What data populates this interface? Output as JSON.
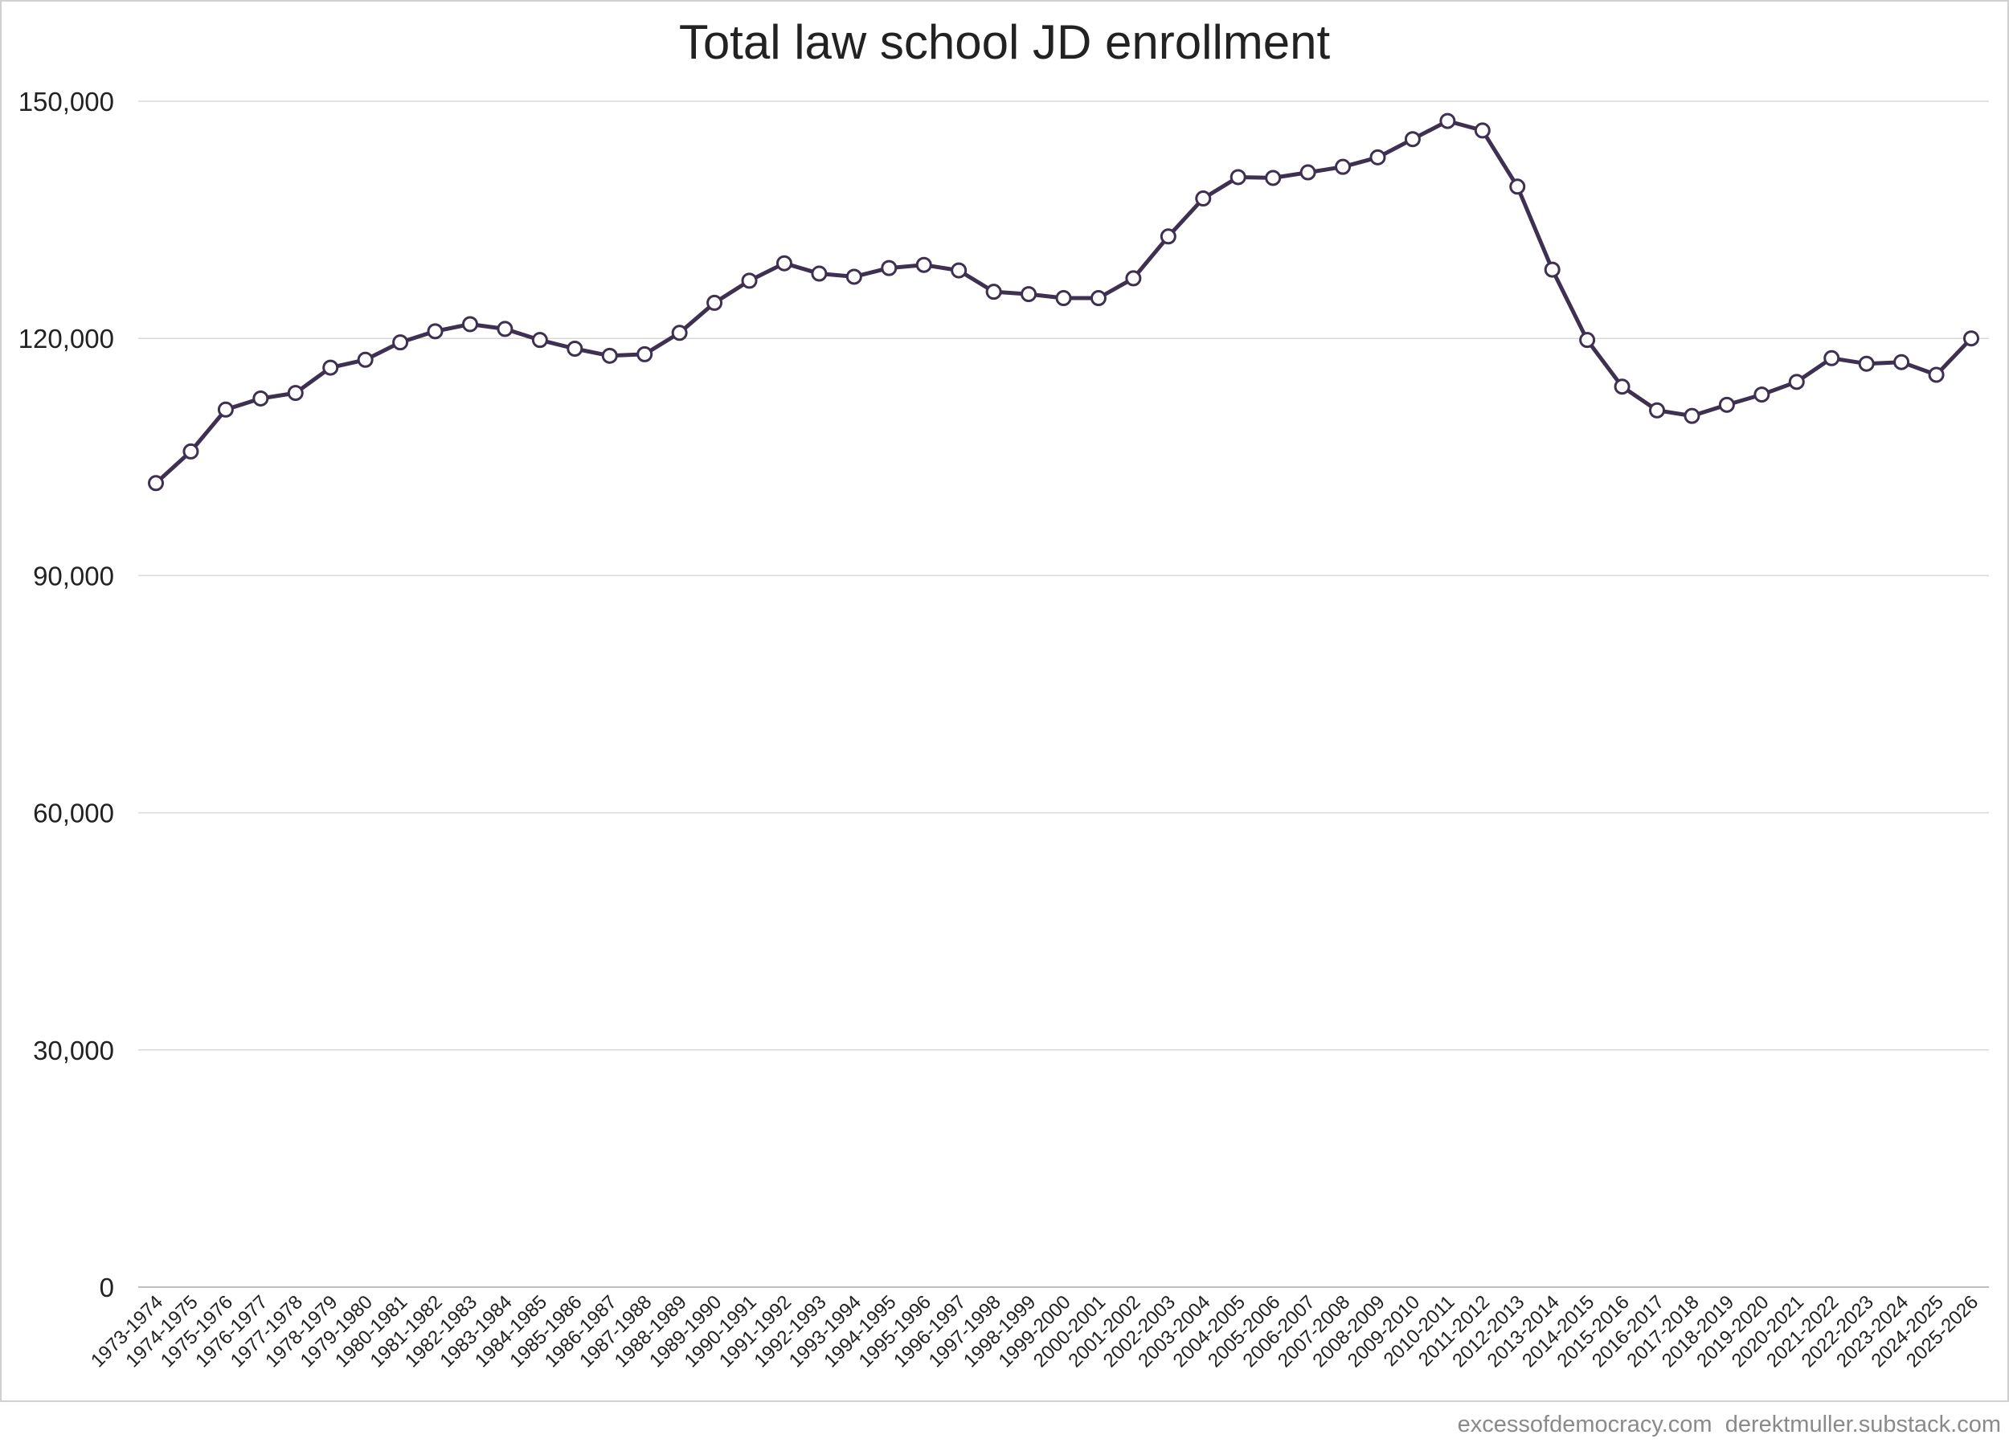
{
  "chart_data": {
    "type": "line",
    "title": "Total law school JD enrollment",
    "xlabel": "",
    "ylabel": "",
    "ylim": [
      0,
      150000
    ],
    "yticks": [
      0,
      30000,
      60000,
      90000,
      120000,
      150000
    ],
    "ytick_labels": [
      "0",
      "30,000",
      "60,000",
      "90,000",
      "120,000",
      "150,000"
    ],
    "grid": "horizontal",
    "legend": "none",
    "categories": [
      "1973-1974",
      "1974-1975",
      "1975-1976",
      "1976-1977",
      "1977-1978",
      "1978-1979",
      "1979-1980",
      "1980-1981",
      "1981-1982",
      "1982-1983",
      "1983-1984",
      "1984-1985",
      "1985-1986",
      "1986-1987",
      "1987-1988",
      "1988-1989",
      "1989-1990",
      "1990-1991",
      "1991-1992",
      "1992-1993",
      "1993-1994",
      "1994-1995",
      "1995-1996",
      "1996-1997",
      "1997-1998",
      "1998-1999",
      "1999-2000",
      "2000-2001",
      "2001-2002",
      "2002-2003",
      "2003-2004",
      "2004-2005",
      "2005-2006",
      "2006-2007",
      "2007-2008",
      "2008-2009",
      "2009-2010",
      "2010-2011",
      "2011-2012",
      "2012-2013",
      "2013-2014",
      "2014-2015",
      "2015-2016",
      "2016-2017",
      "2017-2018",
      "2018-2019",
      "2019-2020",
      "2020-2021",
      "2021-2022",
      "2022-2023",
      "2023-2024",
      "2024-2025",
      "2025-2026"
    ],
    "series": [
      {
        "values": [
          101700,
          105700,
          111000,
          112400,
          113100,
          116300,
          117300,
          119500,
          120900,
          121800,
          121200,
          119800,
          118700,
          117800,
          118000,
          120700,
          124500,
          127300,
          129500,
          128200,
          127800,
          128900,
          129300,
          128600,
          125900,
          125600,
          125100,
          125100,
          127600,
          132900,
          137700,
          140400,
          140300,
          141000,
          141700,
          142900,
          145200,
          147500,
          146300,
          139200,
          128700,
          119800,
          113900,
          110900,
          110200,
          111600,
          112900,
          114500,
          117500,
          116800,
          117000,
          115400,
          120000
        ],
        "color": "#3d3050"
      }
    ]
  },
  "colors": {
    "line": "#3d3050",
    "marker_fill": "#ffffff",
    "grid": "#d9d9d9",
    "text": "#222222",
    "footer_text": "#8a8a8a"
  },
  "footer": {
    "source_text": "excessofdemocracy.com  derektmuller.substack.com"
  }
}
